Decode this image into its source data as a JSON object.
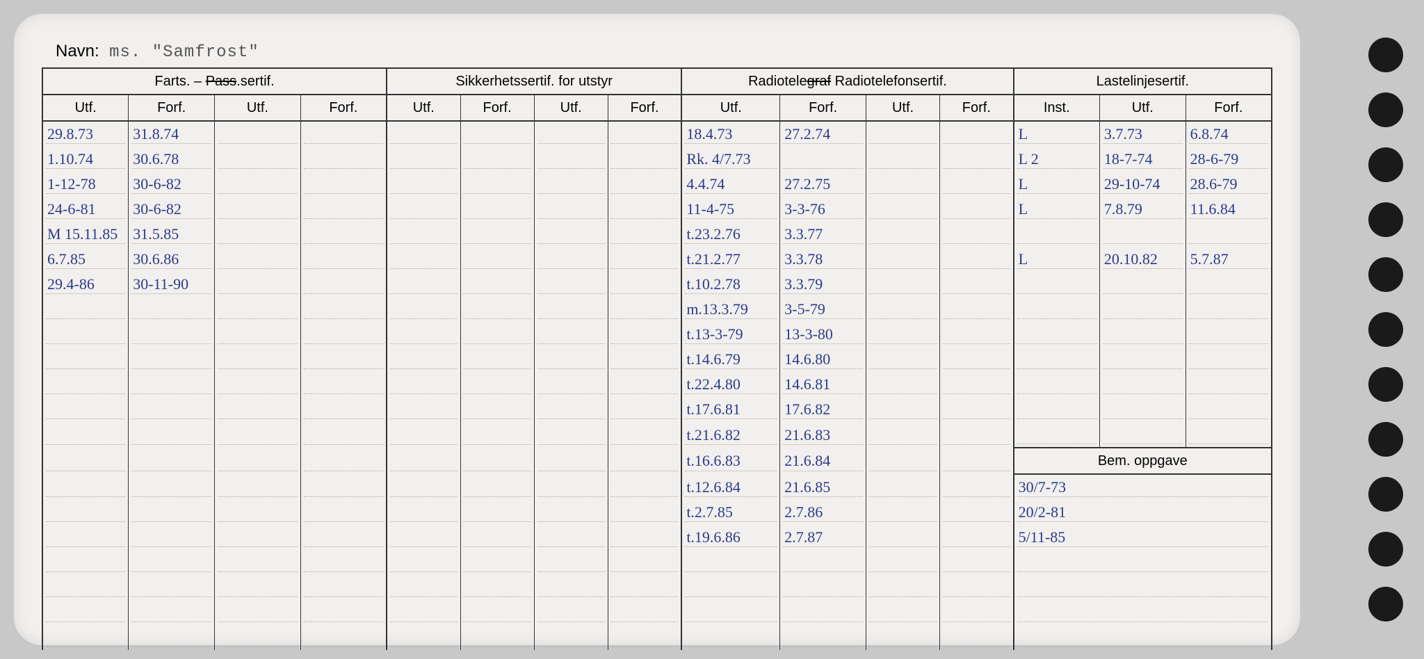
{
  "navn_label": "Navn:",
  "navn_value": "ms.  \"Samfrost\"",
  "headers": {
    "farts": "Farts. – ",
    "farts_strike": "Pass",
    "farts_suffix": ".sertif.",
    "sikkerhet": "Sikkerhetssertif. for utstyr",
    "radio_pre": "Radiotele",
    "radio_strike": "graf",
    "radio_suffix": " Radiotelefonsertif.",
    "laste": "Lastelinjesertif.",
    "utf": "Utf.",
    "forf": "Forf.",
    "inst": "Inst.",
    "bem": "Bem. oppgave"
  },
  "farts_rows": [
    {
      "utf": "29.8.73",
      "forf": "31.8.74"
    },
    {
      "utf": "1.10.74",
      "forf": "30.6.78"
    },
    {
      "utf": "1-12-78",
      "forf": "30-6-82"
    },
    {
      "utf": "24-6-81",
      "forf": "30-6-82"
    },
    {
      "utf": "M 15.11.85",
      "forf": "31.5.85"
    },
    {
      "utf": "6.7.85",
      "forf": "30.6.86"
    },
    {
      "utf": "29.4-86",
      "forf": "30-11-90"
    }
  ],
  "radio_rows": [
    {
      "utf": "18.4.73",
      "forf": "27.2.74"
    },
    {
      "utf": "Rk. 4/7.73",
      "forf": ""
    },
    {
      "utf": "4.4.74",
      "forf": "27.2.75"
    },
    {
      "utf": "11-4-75",
      "forf": "3-3-76"
    },
    {
      "utf": "t.23.2.76",
      "forf": "3.3.77"
    },
    {
      "utf": "t.21.2.77",
      "forf": "3.3.78"
    },
    {
      "utf": "t.10.2.78",
      "forf": "3.3.79"
    },
    {
      "utf": "m.13.3.79",
      "forf": "3-5-79"
    },
    {
      "utf": "t.13-3-79",
      "forf": "13-3-80"
    },
    {
      "utf": "t.14.6.79",
      "forf": "14.6.80"
    },
    {
      "utf": "t.22.4.80",
      "forf": "14.6.81"
    },
    {
      "utf": "t.17.6.81",
      "forf": "17.6.82"
    },
    {
      "utf": "t.21.6.82",
      "forf": "21.6.83"
    },
    {
      "utf": "t.16.6.83",
      "forf": "21.6.84"
    },
    {
      "utf": "t.12.6.84",
      "forf": "21.6.85"
    },
    {
      "utf": "t.2.7.85",
      "forf": "2.7.86"
    },
    {
      "utf": "t.19.6.86",
      "forf": "2.7.87"
    }
  ],
  "laste_rows": [
    {
      "inst": "L",
      "utf": "3.7.73",
      "forf": "6.8.74"
    },
    {
      "inst": "L 2",
      "utf": "18-7-74",
      "forf": "28-6-79"
    },
    {
      "inst": "L",
      "utf": "29-10-74",
      "forf": "28.6-79"
    },
    {
      "inst": "L",
      "utf": "7.8.79",
      "forf": "11.6.84"
    },
    {
      "inst": "L",
      "utf": "20.10.82",
      "forf": "5.7.87"
    }
  ],
  "bem_rows": [
    "30/7-73",
    "20/2-81",
    "5/11-85"
  ],
  "colors": {
    "card_bg": "#f2f0ee",
    "page_bg": "#c8c8c8",
    "ink": "#2b3a8a",
    "line": "#333333"
  }
}
